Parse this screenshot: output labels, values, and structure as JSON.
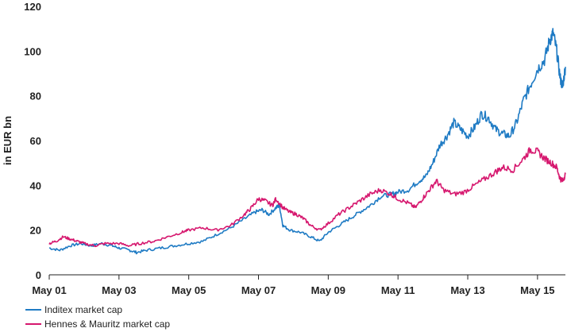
{
  "chart_data": {
    "type": "line",
    "ylabel": "in EUR bn",
    "xlabel": "",
    "ylim": [
      0,
      120
    ],
    "yticks": [
      0,
      20,
      40,
      60,
      80,
      100,
      120
    ],
    "xlim": [
      2001.0,
      2015.8
    ],
    "xticks": [
      {
        "value": 2001,
        "label": "May 01"
      },
      {
        "value": 2003,
        "label": "May 03"
      },
      {
        "value": 2005,
        "label": "May 05"
      },
      {
        "value": 2007,
        "label": "May 07"
      },
      {
        "value": 2009,
        "label": "May 09"
      },
      {
        "value": 2011,
        "label": "May 11"
      },
      {
        "value": 2013,
        "label": "May 13"
      },
      {
        "value": 2015,
        "label": "May 15"
      }
    ],
    "grid": false,
    "legend_position": "bottom-left",
    "series": [
      {
        "name": "Inditex market cap",
        "color": "#1f7bc4",
        "points": [
          [
            2001.0,
            12
          ],
          [
            2001.3,
            11
          ],
          [
            2001.6,
            13
          ],
          [
            2001.9,
            14
          ],
          [
            2002.2,
            13
          ],
          [
            2002.5,
            14
          ],
          [
            2002.8,
            13
          ],
          [
            2003.0,
            12
          ],
          [
            2003.3,
            11
          ],
          [
            2003.5,
            10
          ],
          [
            2003.8,
            11
          ],
          [
            2004.2,
            12
          ],
          [
            2004.6,
            13
          ],
          [
            2005.0,
            14
          ],
          [
            2005.4,
            15
          ],
          [
            2005.8,
            18
          ],
          [
            2006.2,
            21
          ],
          [
            2006.6,
            25
          ],
          [
            2006.9,
            28
          ],
          [
            2007.1,
            29
          ],
          [
            2007.3,
            27
          ],
          [
            2007.5,
            30
          ],
          [
            2007.6,
            31
          ],
          [
            2007.7,
            22
          ],
          [
            2007.9,
            20
          ],
          [
            2008.2,
            19
          ],
          [
            2008.5,
            17
          ],
          [
            2008.75,
            15
          ],
          [
            2009.0,
            19
          ],
          [
            2009.3,
            22
          ],
          [
            2009.6,
            25
          ],
          [
            2009.9,
            28
          ],
          [
            2010.2,
            31
          ],
          [
            2010.5,
            35
          ],
          [
            2010.8,
            36
          ],
          [
            2011.0,
            37
          ],
          [
            2011.3,
            38
          ],
          [
            2011.6,
            42
          ],
          [
            2011.8,
            44
          ],
          [
            2012.0,
            50
          ],
          [
            2012.2,
            58
          ],
          [
            2012.4,
            62
          ],
          [
            2012.6,
            68
          ],
          [
            2012.8,
            65
          ],
          [
            2013.0,
            62
          ],
          [
            2013.2,
            66
          ],
          [
            2013.4,
            72
          ],
          [
            2013.6,
            70
          ],
          [
            2013.8,
            65
          ],
          [
            2014.0,
            63
          ],
          [
            2014.2,
            62
          ],
          [
            2014.4,
            68
          ],
          [
            2014.6,
            78
          ],
          [
            2014.8,
            85
          ],
          [
            2015.0,
            92
          ],
          [
            2015.2,
            96
          ],
          [
            2015.35,
            105
          ],
          [
            2015.45,
            108
          ],
          [
            2015.55,
            100
          ],
          [
            2015.65,
            88
          ],
          [
            2015.72,
            84
          ],
          [
            2015.8,
            93
          ]
        ]
      },
      {
        "name": "Hennes & Mauritz market cap",
        "color": "#d6176e",
        "points": [
          [
            2001.0,
            14
          ],
          [
            2001.2,
            15
          ],
          [
            2001.4,
            17
          ],
          [
            2001.6,
            16
          ],
          [
            2001.8,
            15
          ],
          [
            2002.0,
            14
          ],
          [
            2002.3,
            13
          ],
          [
            2002.6,
            14
          ],
          [
            2003.0,
            14
          ],
          [
            2003.3,
            13
          ],
          [
            2003.6,
            14
          ],
          [
            2004.0,
            15
          ],
          [
            2004.4,
            17
          ],
          [
            2004.8,
            19
          ],
          [
            2005.0,
            20
          ],
          [
            2005.4,
            21
          ],
          [
            2005.8,
            20
          ],
          [
            2006.2,
            22
          ],
          [
            2006.6,
            27
          ],
          [
            2006.8,
            30
          ],
          [
            2007.0,
            34
          ],
          [
            2007.2,
            33
          ],
          [
            2007.4,
            31
          ],
          [
            2007.5,
            34
          ],
          [
            2007.7,
            30
          ],
          [
            2007.9,
            28
          ],
          [
            2008.1,
            27
          ],
          [
            2008.3,
            25
          ],
          [
            2008.5,
            22
          ],
          [
            2008.75,
            20
          ],
          [
            2009.0,
            23
          ],
          [
            2009.3,
            27
          ],
          [
            2009.6,
            30
          ],
          [
            2009.9,
            33
          ],
          [
            2010.2,
            36
          ],
          [
            2010.5,
            38
          ],
          [
            2010.8,
            36
          ],
          [
            2011.0,
            34
          ],
          [
            2011.3,
            32
          ],
          [
            2011.5,
            30
          ],
          [
            2011.7,
            34
          ],
          [
            2011.9,
            38
          ],
          [
            2012.1,
            42
          ],
          [
            2012.3,
            38
          ],
          [
            2012.6,
            36
          ],
          [
            2012.9,
            37
          ],
          [
            2013.2,
            40
          ],
          [
            2013.5,
            43
          ],
          [
            2013.8,
            46
          ],
          [
            2014.0,
            48
          ],
          [
            2014.3,
            47
          ],
          [
            2014.6,
            52
          ],
          [
            2014.8,
            56
          ],
          [
            2015.0,
            55
          ],
          [
            2015.2,
            52
          ],
          [
            2015.4,
            50
          ],
          [
            2015.55,
            48
          ],
          [
            2015.65,
            43
          ],
          [
            2015.72,
            42
          ],
          [
            2015.8,
            45
          ]
        ]
      }
    ]
  }
}
